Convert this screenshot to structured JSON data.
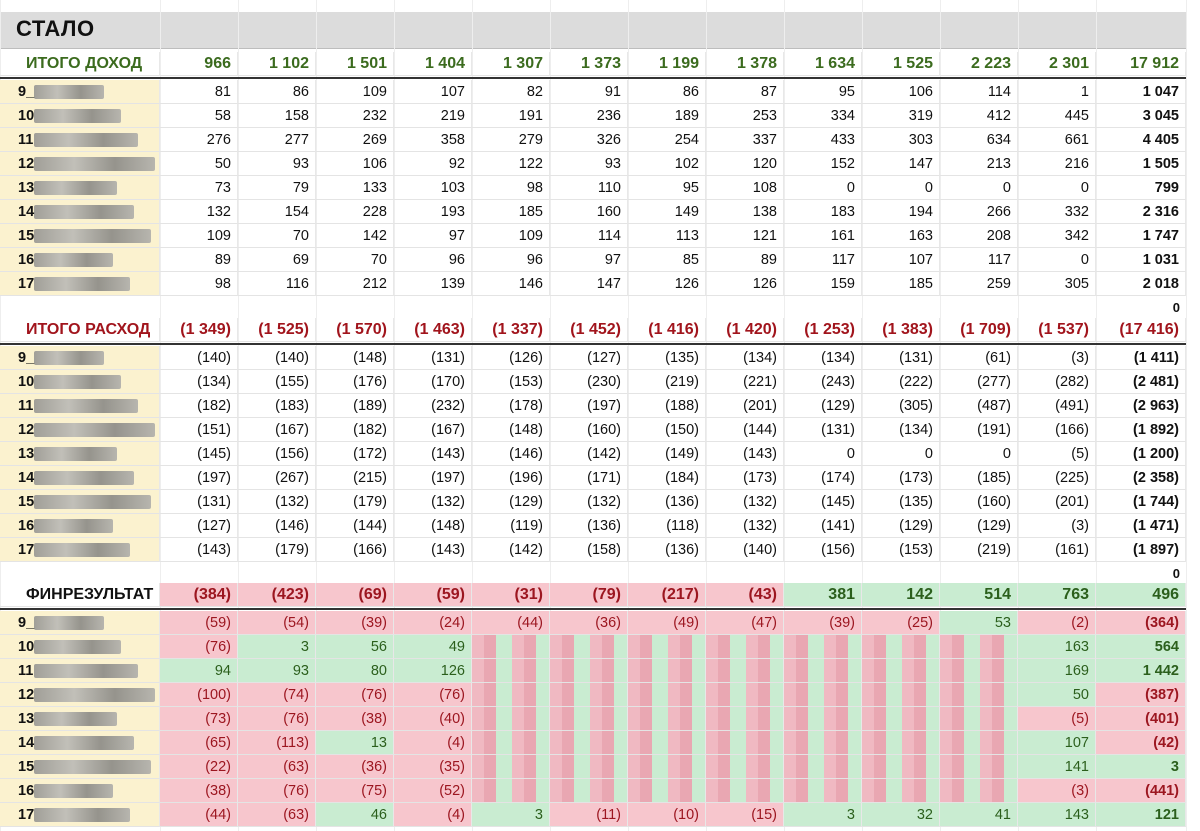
{
  "title": "СТАЛО",
  "zero_label": "0",
  "income": {
    "header": "ИТОГО ДОХОД",
    "totals": [
      "966",
      "1 102",
      "1 501",
      "1 404",
      "1 307",
      "1 373",
      "1 199",
      "1 378",
      "1 634",
      "1 525",
      "2 223",
      "2 301",
      "17 912"
    ],
    "rows": [
      {
        "id": "9_",
        "values": [
          "81",
          "86",
          "109",
          "107",
          "82",
          "91",
          "86",
          "87",
          "95",
          "106",
          "114",
          "1",
          "1 047"
        ]
      },
      {
        "id": "10",
        "values": [
          "58",
          "158",
          "232",
          "219",
          "191",
          "236",
          "189",
          "253",
          "334",
          "319",
          "412",
          "445",
          "3 045"
        ]
      },
      {
        "id": "11",
        "values": [
          "276",
          "277",
          "269",
          "358",
          "279",
          "326",
          "254",
          "337",
          "433",
          "303",
          "634",
          "661",
          "4 405"
        ]
      },
      {
        "id": "12",
        "values": [
          "50",
          "93",
          "106",
          "92",
          "122",
          "93",
          "102",
          "120",
          "152",
          "147",
          "213",
          "216",
          "1 505"
        ]
      },
      {
        "id": "13",
        "values": [
          "73",
          "79",
          "133",
          "103",
          "98",
          "110",
          "95",
          "108",
          "0",
          "0",
          "0",
          "0",
          "799"
        ]
      },
      {
        "id": "14",
        "values": [
          "132",
          "154",
          "228",
          "193",
          "185",
          "160",
          "149",
          "138",
          "183",
          "194",
          "266",
          "332",
          "2 316"
        ]
      },
      {
        "id": "15",
        "values": [
          "109",
          "70",
          "142",
          "97",
          "109",
          "114",
          "113",
          "121",
          "161",
          "163",
          "208",
          "342",
          "1 747"
        ]
      },
      {
        "id": "16",
        "values": [
          "89",
          "69",
          "70",
          "96",
          "96",
          "97",
          "85",
          "89",
          "117",
          "107",
          "117",
          "0",
          "1 031"
        ]
      },
      {
        "id": "17",
        "values": [
          "98",
          "116",
          "212",
          "139",
          "146",
          "147",
          "126",
          "126",
          "159",
          "185",
          "259",
          "305",
          "2 018"
        ]
      }
    ]
  },
  "expense": {
    "header": "ИТОГО РАСХОД",
    "totals": [
      "(1 349)",
      "(1 525)",
      "(1 570)",
      "(1 463)",
      "(1 337)",
      "(1 452)",
      "(1 416)",
      "(1 420)",
      "(1 253)",
      "(1 383)",
      "(1 709)",
      "(1 537)",
      "(17 416)"
    ],
    "rows": [
      {
        "id": "9_",
        "values": [
          "(140)",
          "(140)",
          "(148)",
          "(131)",
          "(126)",
          "(127)",
          "(135)",
          "(134)",
          "(134)",
          "(131)",
          "(61)",
          "(3)",
          "(1 411)"
        ]
      },
      {
        "id": "10",
        "values": [
          "(134)",
          "(155)",
          "(176)",
          "(170)",
          "(153)",
          "(230)",
          "(219)",
          "(221)",
          "(243)",
          "(222)",
          "(277)",
          "(282)",
          "(2 481)"
        ]
      },
      {
        "id": "11",
        "values": [
          "(182)",
          "(183)",
          "(189)",
          "(232)",
          "(178)",
          "(197)",
          "(188)",
          "(201)",
          "(129)",
          "(305)",
          "(487)",
          "(491)",
          "(2 963)"
        ]
      },
      {
        "id": "12",
        "values": [
          "(151)",
          "(167)",
          "(182)",
          "(167)",
          "(148)",
          "(160)",
          "(150)",
          "(144)",
          "(131)",
          "(134)",
          "(191)",
          "(166)",
          "(1 892)"
        ]
      },
      {
        "id": "13",
        "values": [
          "(145)",
          "(156)",
          "(172)",
          "(143)",
          "(146)",
          "(142)",
          "(149)",
          "(143)",
          "0",
          "0",
          "0",
          "(5)",
          "(1 200)"
        ]
      },
      {
        "id": "14",
        "values": [
          "(197)",
          "(267)",
          "(215)",
          "(197)",
          "(196)",
          "(171)",
          "(184)",
          "(173)",
          "(174)",
          "(173)",
          "(185)",
          "(225)",
          "(2 358)"
        ]
      },
      {
        "id": "15",
        "values": [
          "(131)",
          "(132)",
          "(179)",
          "(132)",
          "(129)",
          "(132)",
          "(136)",
          "(132)",
          "(145)",
          "(135)",
          "(160)",
          "(201)",
          "(1 744)"
        ]
      },
      {
        "id": "16",
        "values": [
          "(127)",
          "(146)",
          "(144)",
          "(148)",
          "(119)",
          "(136)",
          "(118)",
          "(132)",
          "(141)",
          "(129)",
          "(129)",
          "(3)",
          "(1 471)"
        ]
      },
      {
        "id": "17",
        "values": [
          "(143)",
          "(179)",
          "(166)",
          "(143)",
          "(142)",
          "(158)",
          "(136)",
          "(140)",
          "(156)",
          "(153)",
          "(219)",
          "(161)",
          "(1 897)"
        ]
      }
    ]
  },
  "result": {
    "header": "ФИНРЕЗУЛЬТАТ",
    "totals": [
      "(384)",
      "(423)",
      "(69)",
      "(59)",
      "(31)",
      "(79)",
      "(217)",
      "(43)",
      "381",
      "142",
      "514",
      "763",
      "496"
    ],
    "rows": [
      {
        "id": "9_",
        "values": [
          "(59)",
          "(54)",
          "(39)",
          "(24)",
          "(44)",
          "(36)",
          "(49)",
          "(47)",
          "(39)",
          "(25)",
          "53",
          "(2)",
          "(364)"
        ]
      },
      {
        "id": "10",
        "values": [
          "(76)",
          "3",
          "56",
          "49",
          "",
          "",
          "",
          "",
          "",
          "",
          "",
          "163",
          "564"
        ]
      },
      {
        "id": "11",
        "values": [
          "94",
          "93",
          "80",
          "126",
          "",
          "",
          "",
          "",
          "",
          "",
          "",
          "169",
          "1 442"
        ]
      },
      {
        "id": "12",
        "values": [
          "(100)",
          "(74)",
          "(76)",
          "(76)",
          "",
          "",
          "",
          "",
          "",
          "",
          "",
          "50",
          "(387)"
        ]
      },
      {
        "id": "13",
        "values": [
          "(73)",
          "(76)",
          "(38)",
          "(40)",
          "",
          "",
          "",
          "",
          "",
          "",
          "",
          "(5)",
          "(401)"
        ]
      },
      {
        "id": "14",
        "values": [
          "(65)",
          "(113)",
          "13",
          "(4)",
          "",
          "",
          "",
          "",
          "",
          "",
          "",
          "107",
          "(42)"
        ]
      },
      {
        "id": "15",
        "values": [
          "(22)",
          "(63)",
          "(36)",
          "(35)",
          "",
          "",
          "",
          "",
          "",
          "",
          "",
          "141",
          "3"
        ]
      },
      {
        "id": "16",
        "values": [
          "(38)",
          "(76)",
          "(75)",
          "(52)",
          "",
          "",
          "",
          "",
          "",
          "",
          "",
          "(3)",
          "(441)"
        ]
      },
      {
        "id": "17",
        "values": [
          "(44)",
          "(63)",
          "46",
          "(4)",
          "3",
          "(11)",
          "(10)",
          "(15)",
          "3",
          "32",
          "41",
          "143",
          "121"
        ]
      }
    ]
  },
  "colors": {
    "income_text": "#3b6b1e",
    "expense_text": "#a1141c",
    "negative_fill": "#f7c6cd",
    "positive_fill": "#c9ecd1",
    "name_fill": "#fbf2cf"
  }
}
